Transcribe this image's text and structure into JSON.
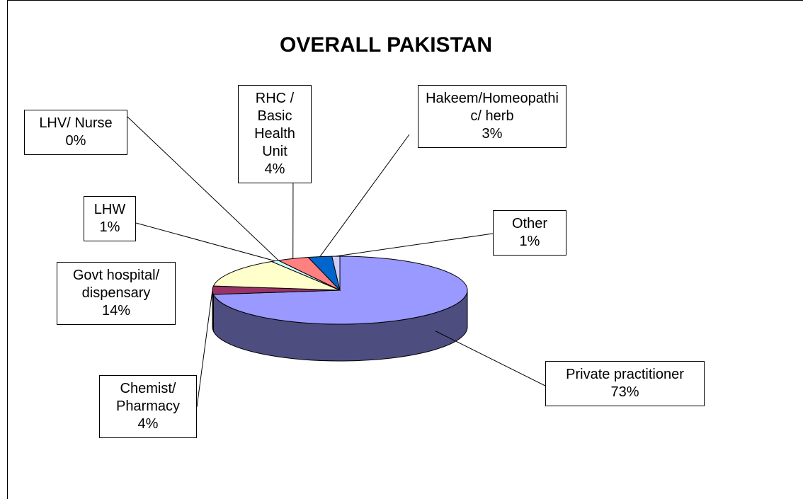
{
  "chart_data": {
    "type": "pie",
    "title": "OVERALL PAKISTAN",
    "categories": [
      "Private practitioner",
      "Chemist/ Pharmacy",
      "Govt hospital/ dispensary",
      "LHW",
      "LHV/ Nurse",
      "RHC / Basic Health Unit",
      "Hakeem/Homeopathic/ herb",
      "Other"
    ],
    "values": [
      73,
      4,
      14,
      1,
      0,
      4,
      3,
      1
    ],
    "value_labels": [
      "73%",
      "4%",
      "14%",
      "1%",
      "0%",
      "4%",
      "3%",
      "1%"
    ],
    "colors": [
      "#9999ff",
      "#993366",
      "#ffffcc",
      "#ccffff",
      "#660066",
      "#ff8080",
      "#0066cc",
      "#ccccff"
    ]
  }
}
